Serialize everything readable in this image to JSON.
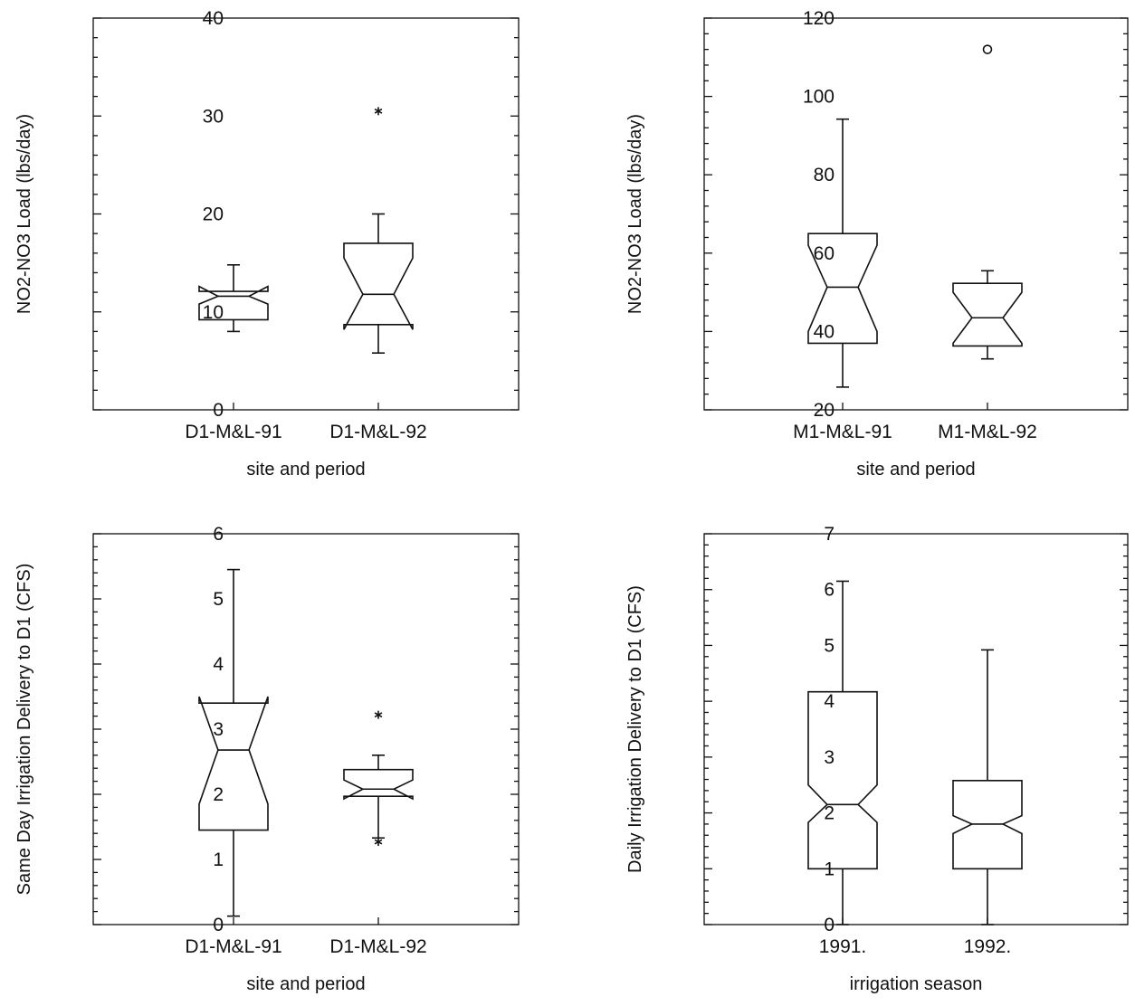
{
  "chart_data": [
    {
      "type": "boxplot",
      "notched": true,
      "ylabel": "NO2-NO3 Load (lbs/day)",
      "xlabel": "site and period",
      "ylim": [
        0,
        40
      ],
      "yticks": [
        0,
        10,
        20,
        30,
        40
      ],
      "categories": [
        "D1-M&L-91",
        "D1-M&L-92"
      ],
      "boxes": [
        {
          "whisker_low": 8.0,
          "q1": 9.2,
          "median": 11.6,
          "q3": 12.1,
          "whisker_high": 14.8,
          "notch_low": 10.8,
          "notch_high": 12.6,
          "outliers": []
        },
        {
          "whisker_low": 5.8,
          "q1": 8.7,
          "median": 11.8,
          "q3": 17.0,
          "whisker_high": 20.0,
          "notch_low": 8.2,
          "notch_high": 15.5,
          "outliers": [
            {
              "value": 30.5,
              "symbol": "star"
            }
          ]
        }
      ]
    },
    {
      "type": "boxplot",
      "notched": true,
      "ylabel": "NO2-NO3 Load (lbs/day)",
      "xlabel": "site and period",
      "ylim": [
        20,
        120
      ],
      "yticks": [
        20,
        40,
        60,
        80,
        100,
        120
      ],
      "categories": [
        "M1-M&L-91",
        "M1-M&L-92"
      ],
      "boxes": [
        {
          "whisker_low": 25.8,
          "q1": 37.0,
          "median": 51.3,
          "q3": 65.0,
          "whisker_high": 94.2,
          "notch_low": 40.0,
          "notch_high": 62.0,
          "outliers": []
        },
        {
          "whisker_low": 33.0,
          "q1": 36.3,
          "median": 43.5,
          "q3": 52.3,
          "whisker_high": 55.5,
          "notch_low": 37.0,
          "notch_high": 50.0,
          "outliers": [
            {
              "value": 112.0,
              "symbol": "circle"
            }
          ]
        }
      ]
    },
    {
      "type": "boxplot",
      "notched": true,
      "ylabel": "Same Day Irrigation Delivery to D1 (CFS)",
      "xlabel": "site and period",
      "ylim": [
        0,
        6
      ],
      "yticks": [
        0,
        1,
        2,
        3,
        4,
        5,
        6
      ],
      "categories": [
        "D1-M&L-91",
        "D1-M&L-92"
      ],
      "boxes": [
        {
          "whisker_low": 0.13,
          "q1": 1.45,
          "median": 2.68,
          "q3": 3.4,
          "whisker_high": 5.45,
          "notch_low": 1.85,
          "notch_high": 3.5,
          "outliers": []
        },
        {
          "whisker_low": 1.33,
          "q1": 1.97,
          "median": 2.08,
          "q3": 2.38,
          "whisker_high": 2.6,
          "notch_low": 1.93,
          "notch_high": 2.22,
          "outliers": [
            {
              "value": 3.22,
              "symbol": "star"
            },
            {
              "value": 1.27,
              "symbol": "star"
            }
          ]
        }
      ]
    },
    {
      "type": "boxplot",
      "notched": true,
      "ylabel": "Daily Irrigation Delivery to D1 (CFS)",
      "xlabel": "irrigation season",
      "ylim": [
        0,
        7
      ],
      "yticks": [
        0,
        1,
        2,
        3,
        4,
        5,
        6,
        7
      ],
      "categories": [
        "1991.",
        "1992."
      ],
      "boxes": [
        {
          "whisker_low": 0,
          "q1": 1.0,
          "median": 2.15,
          "q3": 4.17,
          "whisker_high": 6.15,
          "notch_low": 1.83,
          "notch_high": 2.5,
          "outliers": []
        },
        {
          "whisker_low": 0,
          "q1": 1.0,
          "median": 1.8,
          "q3": 2.58,
          "whisker_high": 4.92,
          "notch_low": 1.63,
          "notch_high": 1.95,
          "outliers": []
        }
      ]
    }
  ]
}
